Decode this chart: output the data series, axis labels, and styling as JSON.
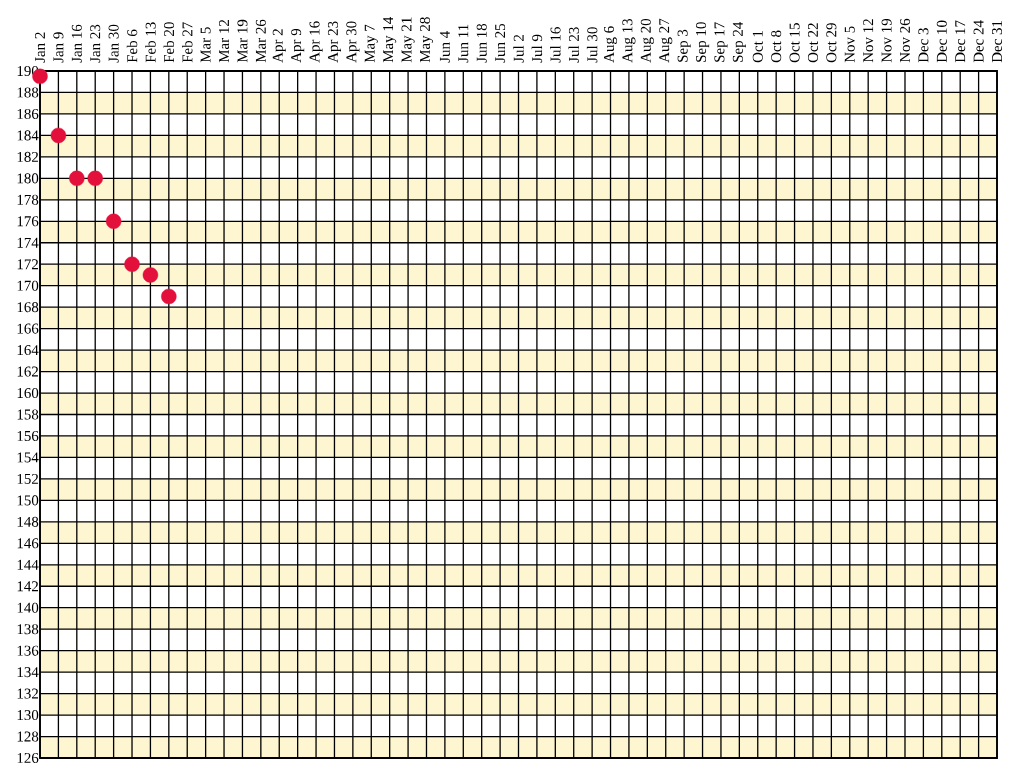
{
  "chart_data": {
    "type": "scatter",
    "categories": [
      "Jan 2",
      "Jan 9",
      "Jan 16",
      "Jan 23",
      "Jan 30",
      "Feb 6",
      "Feb 13",
      "Feb 20",
      "Feb 27",
      "Mar 5",
      "Mar 12",
      "Mar 19",
      "Mar 26",
      "Apr 2",
      "Apr 9",
      "Apr 16",
      "Apr 23",
      "Apr 30",
      "May 7",
      "May 14",
      "May 21",
      "May 28",
      "Jun 4",
      "Jun 11",
      "Jun 18",
      "Jun 25",
      "Jul 2",
      "Jul 9",
      "Jul 16",
      "Jul 23",
      "Jul 30",
      "Aug 6",
      "Aug 13",
      "Aug 20",
      "Aug 27",
      "Sep 3",
      "Sep 10",
      "Sep 17",
      "Sep 24",
      "Oct 1",
      "Oct 8",
      "Oct 15",
      "Oct 22",
      "Oct 29",
      "Nov 5",
      "Nov 12",
      "Nov 19",
      "Nov 26",
      "Dec 3",
      "Dec 10",
      "Dec 17",
      "Dec 24",
      "Dec 31"
    ],
    "values": [
      189.5,
      184,
      180,
      180,
      176,
      172,
      171,
      169,
      null,
      null,
      null,
      null,
      null,
      null,
      null,
      null,
      null,
      null,
      null,
      null,
      null,
      null,
      null,
      null,
      null,
      null,
      null,
      null,
      null,
      null,
      null,
      null,
      null,
      null,
      null,
      null,
      null,
      null,
      null,
      null,
      null,
      null,
      null,
      null,
      null,
      null,
      null,
      null,
      null,
      null,
      null,
      null,
      null
    ],
    "color": "#e3103c",
    "marker": "circle",
    "ylim": [
      126,
      190
    ],
    "yticks": [
      126,
      128,
      130,
      132,
      134,
      136,
      138,
      140,
      142,
      144,
      146,
      148,
      150,
      152,
      154,
      156,
      158,
      160,
      162,
      164,
      166,
      168,
      170,
      172,
      174,
      176,
      178,
      180,
      182,
      184,
      186,
      188,
      190
    ],
    "grid": true,
    "bands": [
      {
        "axis": "y",
        "from": 126,
        "to": 128,
        "color": "#fdf6d0"
      },
      {
        "axis": "y",
        "from": 130,
        "to": 132,
        "color": "#fdf6d0"
      },
      {
        "axis": "y",
        "from": 134,
        "to": 136,
        "color": "#fdf6d0"
      },
      {
        "axis": "y",
        "from": 138,
        "to": 140,
        "color": "#fdf6d0"
      },
      {
        "axis": "y",
        "from": 142,
        "to": 144,
        "color": "#fdf6d0"
      },
      {
        "axis": "y",
        "from": 146,
        "to": 148,
        "color": "#fdf6d0"
      },
      {
        "axis": "y",
        "from": 150,
        "to": 152,
        "color": "#fdf6d0"
      },
      {
        "axis": "y",
        "from": 154,
        "to": 156,
        "color": "#fdf6d0"
      },
      {
        "axis": "y",
        "from": 158,
        "to": 160,
        "color": "#fdf6d0"
      },
      {
        "axis": "y",
        "from": 162,
        "to": 164,
        "color": "#fdf6d0"
      },
      {
        "axis": "y",
        "from": 166,
        "to": 168,
        "color": "#fdf6d0"
      },
      {
        "axis": "y",
        "from": 170,
        "to": 172,
        "color": "#fdf6d0"
      },
      {
        "axis": "y",
        "from": 174,
        "to": 176,
        "color": "#fdf6d0"
      },
      {
        "axis": "y",
        "from": 178,
        "to": 180,
        "color": "#fdf6d0"
      },
      {
        "axis": "y",
        "from": 182,
        "to": 184,
        "color": "#fdf6d0"
      },
      {
        "axis": "y",
        "from": 186,
        "to": 188,
        "color": "#fdf6d0"
      }
    ]
  }
}
